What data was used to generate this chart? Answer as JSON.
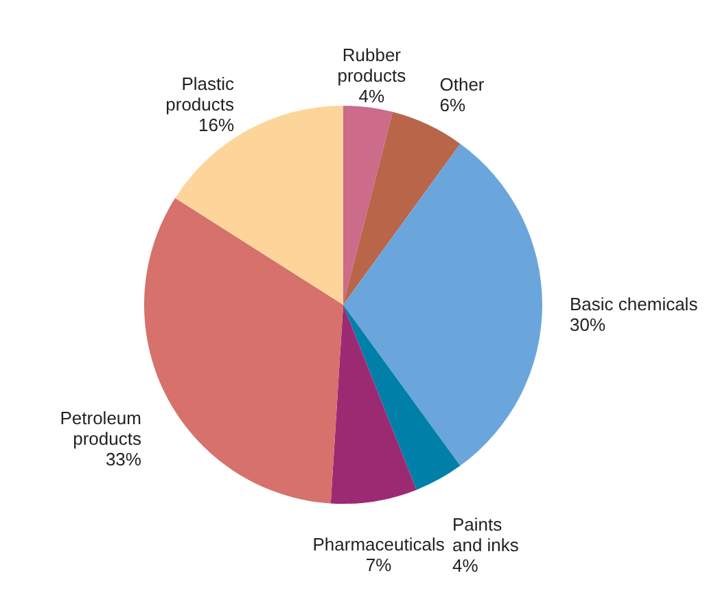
{
  "chart_data": {
    "type": "pie",
    "categories": [
      "Rubber\nproducts",
      "Other",
      "Basic chemicals",
      "Paints\nand inks",
      "Pharmaceuticals",
      "Petroleum\nproducts",
      "Plastic\nproducts"
    ],
    "values": [
      4,
      6,
      30,
      4,
      7,
      33,
      16
    ],
    "value_labels": [
      "4%",
      "6%",
      "30%",
      "4%",
      "7%",
      "33%",
      "16%"
    ],
    "colors": [
      "#cc6b8a",
      "#b8654a",
      "#6aa6dc",
      "#0080a8",
      "#9c2a72",
      "#d6716c",
      "#fdd59a"
    ]
  }
}
